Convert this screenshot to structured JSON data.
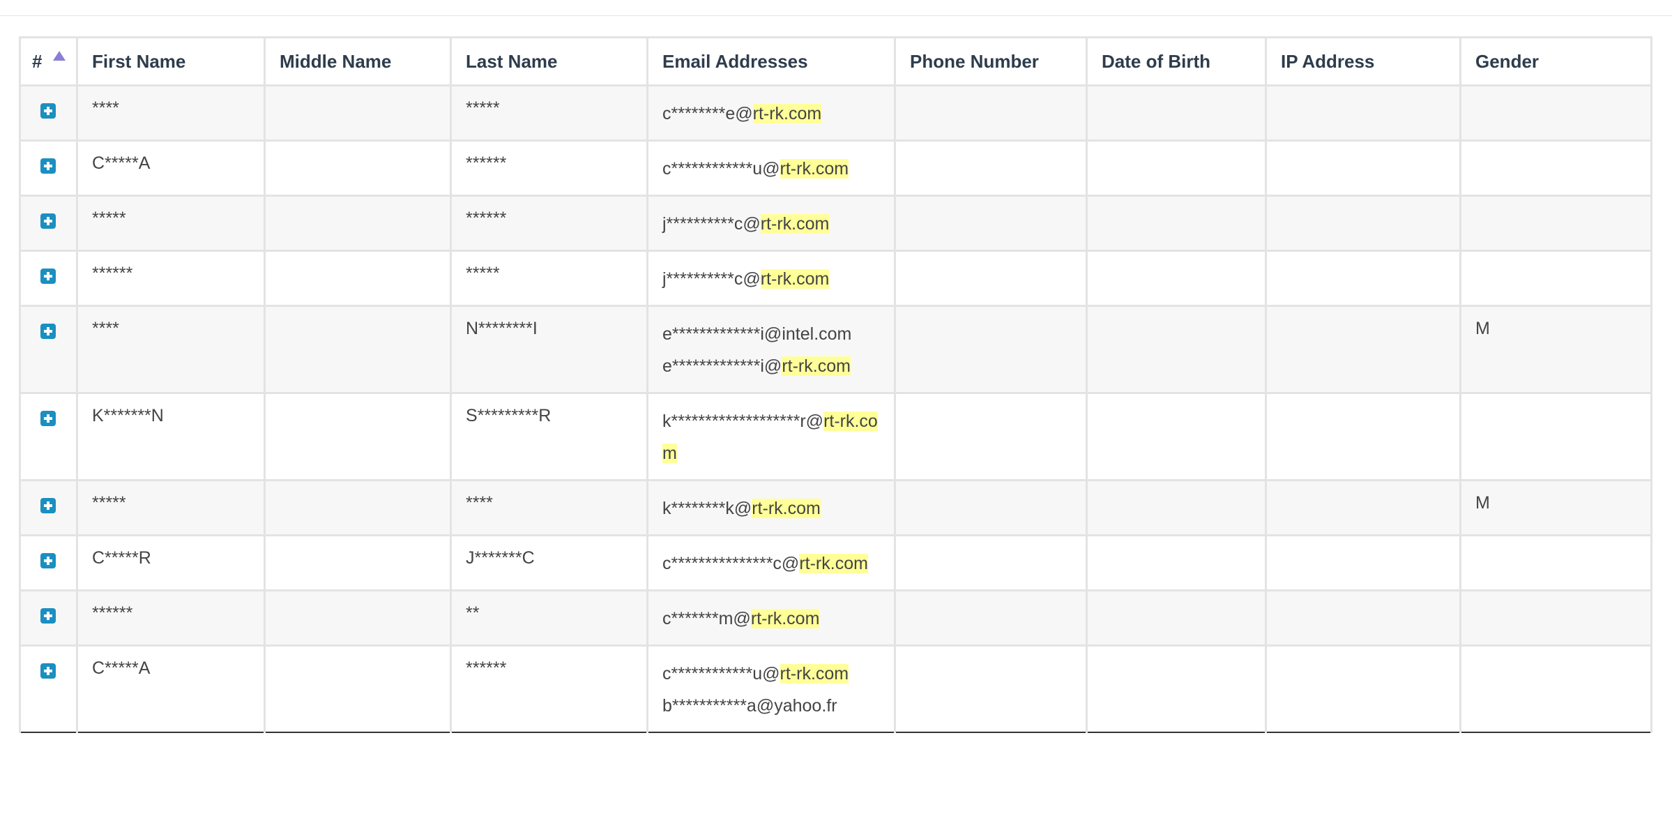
{
  "table": {
    "columns": {
      "index": "#",
      "first_name": "First Name",
      "middle_name": "Middle Name",
      "last_name": "Last Name",
      "emails": "Email Addresses",
      "phone": "Phone Number",
      "dob": "Date of Birth",
      "ip": "IP Address",
      "gender": "Gender"
    },
    "sort": {
      "column": "#",
      "direction": "ascending",
      "icon": "sort-ascending-icon",
      "color": "#8a7fd6"
    },
    "expand_icon": {
      "name": "expand-plus-icon",
      "color": "#1a8fc1"
    },
    "highlight_color": "#ffff99",
    "rows": [
      {
        "first_name": "****",
        "middle_name": "",
        "last_name": "*****",
        "emails": [
          {
            "local": "c********e@",
            "domain": "rt-rk.com",
            "highlight": true
          }
        ],
        "phone": "",
        "dob": "",
        "ip": "",
        "gender": ""
      },
      {
        "first_name": "C*****A",
        "middle_name": "",
        "last_name": "******",
        "emails": [
          {
            "local": "c************u@",
            "domain": "rt-rk.com",
            "highlight": true
          }
        ],
        "phone": "",
        "dob": "",
        "ip": "",
        "gender": ""
      },
      {
        "first_name": "*****",
        "middle_name": "",
        "last_name": "******",
        "emails": [
          {
            "local": "j**********c@",
            "domain": "rt-rk.com",
            "highlight": true
          }
        ],
        "phone": "",
        "dob": "",
        "ip": "",
        "gender": ""
      },
      {
        "first_name": "******",
        "middle_name": "",
        "last_name": "*****",
        "emails": [
          {
            "local": "j**********c@",
            "domain": "rt-rk.com",
            "highlight": true
          }
        ],
        "phone": "",
        "dob": "",
        "ip": "",
        "gender": ""
      },
      {
        "first_name": "****",
        "middle_name": "",
        "last_name": "N********I",
        "emails": [
          {
            "local": "e*************i@",
            "domain": "intel.com",
            "highlight": false
          },
          {
            "local": "e*************i@",
            "domain": "rt-rk.com",
            "highlight": true
          }
        ],
        "phone": "",
        "dob": "",
        "ip": "",
        "gender": "M"
      },
      {
        "first_name": "K*******N",
        "middle_name": "",
        "last_name": "S*********R",
        "emails": [
          {
            "local": "k*******************r@",
            "domain": "rt-rk.com",
            "highlight": true
          }
        ],
        "phone": "",
        "dob": "",
        "ip": "",
        "gender": ""
      },
      {
        "first_name": "*****",
        "middle_name": "",
        "last_name": "****",
        "emails": [
          {
            "local": "k********k@",
            "domain": "rt-rk.com",
            "highlight": true
          }
        ],
        "phone": "",
        "dob": "",
        "ip": "",
        "gender": "M"
      },
      {
        "first_name": "C*****R",
        "middle_name": "",
        "last_name": "J*******C",
        "emails": [
          {
            "local": "c***************c@",
            "domain": "rt-rk.com",
            "highlight": true
          }
        ],
        "phone": "",
        "dob": "",
        "ip": "",
        "gender": ""
      },
      {
        "first_name": "******",
        "middle_name": "",
        "last_name": "**",
        "emails": [
          {
            "local": "c*******m@",
            "domain": "rt-rk.com",
            "highlight": true
          }
        ],
        "phone": "",
        "dob": "",
        "ip": "",
        "gender": ""
      },
      {
        "first_name": "C*****A",
        "middle_name": "",
        "last_name": "******",
        "emails": [
          {
            "local": "c************u@",
            "domain": "rt-rk.com",
            "highlight": true
          },
          {
            "local": "b***********a@",
            "domain": "yahoo.fr",
            "highlight": false
          }
        ],
        "phone": "",
        "dob": "",
        "ip": "",
        "gender": ""
      }
    ]
  }
}
